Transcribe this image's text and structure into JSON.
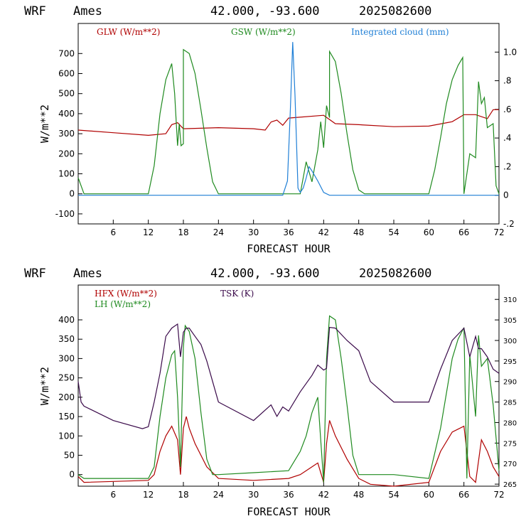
{
  "header_top": {
    "model": "WRF",
    "station": "Ames",
    "coords": "42.000, -93.600",
    "run": "2025082600"
  },
  "header_bottom": {
    "model": "WRF",
    "station": "Ames",
    "coords": "42.000, -93.600",
    "run": "2025082600"
  },
  "colors": {
    "glw": "#b00000",
    "gsw": "#1f8a1f",
    "cloud": "#1f7fd6",
    "hfx": "#b00000",
    "lh": "#1f8a1f",
    "tsk": "#3a0a4a"
  },
  "chart_data": [
    {
      "type": "line",
      "xlabel": "FORECAST HOUR",
      "ylabel": "W/m**2",
      "xlim": [
        0,
        72
      ],
      "ylim": [
        -150,
        850
      ],
      "xticks": [
        6,
        12,
        18,
        24,
        30,
        36,
        42,
        48,
        54,
        60,
        66,
        72
      ],
      "yticks": [
        -100,
        0,
        100,
        200,
        300,
        400,
        500,
        600,
        700
      ],
      "y2lim": [
        -0.2,
        1.2
      ],
      "y2ticks": [
        -0.2,
        0,
        0.2,
        0.4,
        0.6,
        0.8,
        1.0
      ],
      "y2ticklabels": [
        "-.2",
        "0",
        ".2",
        ".4",
        ".6",
        ".8",
        "1.0"
      ],
      "series": [
        {
          "name": "GLW (W/m**2)",
          "key": "glw",
          "x": [
            0,
            6,
            12,
            15,
            16,
            17,
            18,
            24,
            30,
            32,
            33,
            34,
            35,
            36,
            42,
            44,
            48,
            54,
            60,
            64,
            66,
            68,
            70,
            71,
            72
          ],
          "y": [
            318,
            305,
            292,
            300,
            345,
            355,
            325,
            330,
            325,
            318,
            358,
            368,
            342,
            378,
            392,
            350,
            345,
            335,
            338,
            360,
            395,
            395,
            375,
            420,
            420
          ]
        },
        {
          "name": "GSW (W/m**2)",
          "key": "gsw",
          "x": [
            0,
            1,
            12,
            13,
            14,
            15,
            16,
            16.5,
            17,
            17.3,
            17.6,
            18,
            18,
            19,
            20,
            21,
            22,
            23,
            24,
            25,
            38,
            39,
            40,
            41,
            41.5,
            42,
            42.5,
            43,
            43,
            44,
            45,
            46,
            47,
            48,
            49,
            60,
            61,
            62,
            63,
            64,
            65,
            65.8,
            66,
            67,
            68,
            68.5,
            69,
            69.5,
            70,
            71,
            71.5,
            72
          ],
          "y": [
            80,
            0,
            0,
            140,
            400,
            570,
            650,
            500,
            240,
            350,
            240,
            250,
            720,
            700,
            600,
            420,
            230,
            60,
            0,
            0,
            0,
            160,
            60,
            220,
            360,
            230,
            440,
            380,
            710,
            660,
            500,
            300,
            120,
            20,
            0,
            0,
            120,
            280,
            450,
            570,
            640,
            680,
            0,
            200,
            180,
            560,
            450,
            480,
            330,
            350,
            40,
            0
          ],
          "style": "step-like"
        },
        {
          "name": "Integrated cloud (mm)",
          "key": "cloud",
          "axis": "y2",
          "x": [
            0,
            35,
            35.8,
            36.3,
            36.7,
            37.1,
            37.6,
            38,
            38.5,
            39,
            39.5,
            40,
            41,
            42,
            43,
            72
          ],
          "y": [
            0,
            0,
            0.1,
            0.6,
            1.07,
            0.7,
            0.05,
            0.02,
            0.05,
            0.12,
            0.2,
            0.17,
            0.1,
            0.02,
            0,
            0
          ]
        }
      ]
    },
    {
      "type": "line",
      "xlabel": "FORECAST HOUR",
      "ylabel": "W/m**2",
      "xlim": [
        0,
        72
      ],
      "ylim": [
        -30,
        490
      ],
      "xticks": [
        6,
        12,
        18,
        24,
        30,
        36,
        42,
        48,
        54,
        60,
        66,
        72
      ],
      "yticks": [
        0,
        50,
        100,
        150,
        200,
        250,
        300,
        350,
        400
      ],
      "y2lim": [
        264.5,
        313.5
      ],
      "y2ticks": [
        265,
        270,
        275,
        280,
        285,
        290,
        295,
        300,
        305,
        310
      ],
      "series": [
        {
          "name": "HFX (W/m**2)",
          "key": "hfx",
          "x": [
            0,
            1,
            12,
            13,
            14,
            15,
            16,
            17,
            17.5,
            18,
            18.5,
            19,
            20,
            22,
            24,
            30,
            36,
            38,
            40,
            41,
            42,
            42.5,
            43,
            44,
            46,
            48,
            50,
            54,
            60,
            62,
            64,
            66,
            67,
            68,
            69,
            70,
            71,
            72
          ],
          "y": [
            -5,
            -20,
            -15,
            0,
            60,
            100,
            125,
            90,
            0,
            120,
            150,
            120,
            80,
            20,
            -10,
            -15,
            -10,
            0,
            20,
            30,
            -20,
            80,
            140,
            100,
            40,
            -10,
            -25,
            -30,
            -20,
            60,
            110,
            125,
            -5,
            -20,
            90,
            60,
            20,
            -5
          ]
        },
        {
          "name": "LH (W/m**2)",
          "key": "lh",
          "x": [
            0,
            1,
            12,
            13,
            14,
            15,
            16,
            16.5,
            17,
            17.5,
            18,
            18.3,
            19,
            20,
            21,
            22,
            23,
            24,
            30,
            36,
            38,
            39,
            40,
            41,
            42,
            42.5,
            43,
            44,
            45,
            46,
            47,
            48,
            54,
            60,
            62,
            64,
            65,
            66,
            66.5,
            67,
            68,
            68.5,
            69,
            70,
            71,
            72
          ],
          "y": [
            0,
            -10,
            -10,
            20,
            150,
            250,
            310,
            320,
            200,
            20,
            330,
            385,
            370,
            300,
            160,
            40,
            0,
            0,
            5,
            10,
            60,
            100,
            160,
            200,
            -20,
            300,
            410,
            400,
            300,
            180,
            50,
            0,
            0,
            -10,
            120,
            300,
            350,
            380,
            -10,
            310,
            150,
            360,
            280,
            300,
            180,
            10
          ]
        },
        {
          "name": "TSK (K)",
          "key": "tsk",
          "axis": "y2",
          "x": [
            0,
            0.5,
            1,
            6,
            11,
            12,
            13,
            14,
            15,
            16,
            17,
            17.5,
            18,
            18.5,
            19,
            20,
            21,
            22,
            23,
            24,
            30,
            33,
            34,
            35,
            36,
            38,
            40,
            41,
            42,
            42.5,
            43,
            44,
            46,
            48,
            50,
            54,
            60,
            62,
            64,
            66,
            67,
            68,
            68.5,
            69,
            70,
            71,
            72
          ],
          "y": [
            290,
            285,
            284,
            280.5,
            278.5,
            279,
            285,
            292,
            301,
            303,
            304,
            296,
            302,
            303,
            303,
            301,
            299,
            295,
            290,
            285,
            280.5,
            284.3,
            281.5,
            283.8,
            282.8,
            287.5,
            291.5,
            294,
            292.8,
            293.2,
            303.2,
            303,
            300,
            297.5,
            290,
            285,
            285,
            293,
            300,
            303,
            296,
            301,
            298,
            298,
            296,
            293,
            292
          ]
        }
      ]
    }
  ]
}
